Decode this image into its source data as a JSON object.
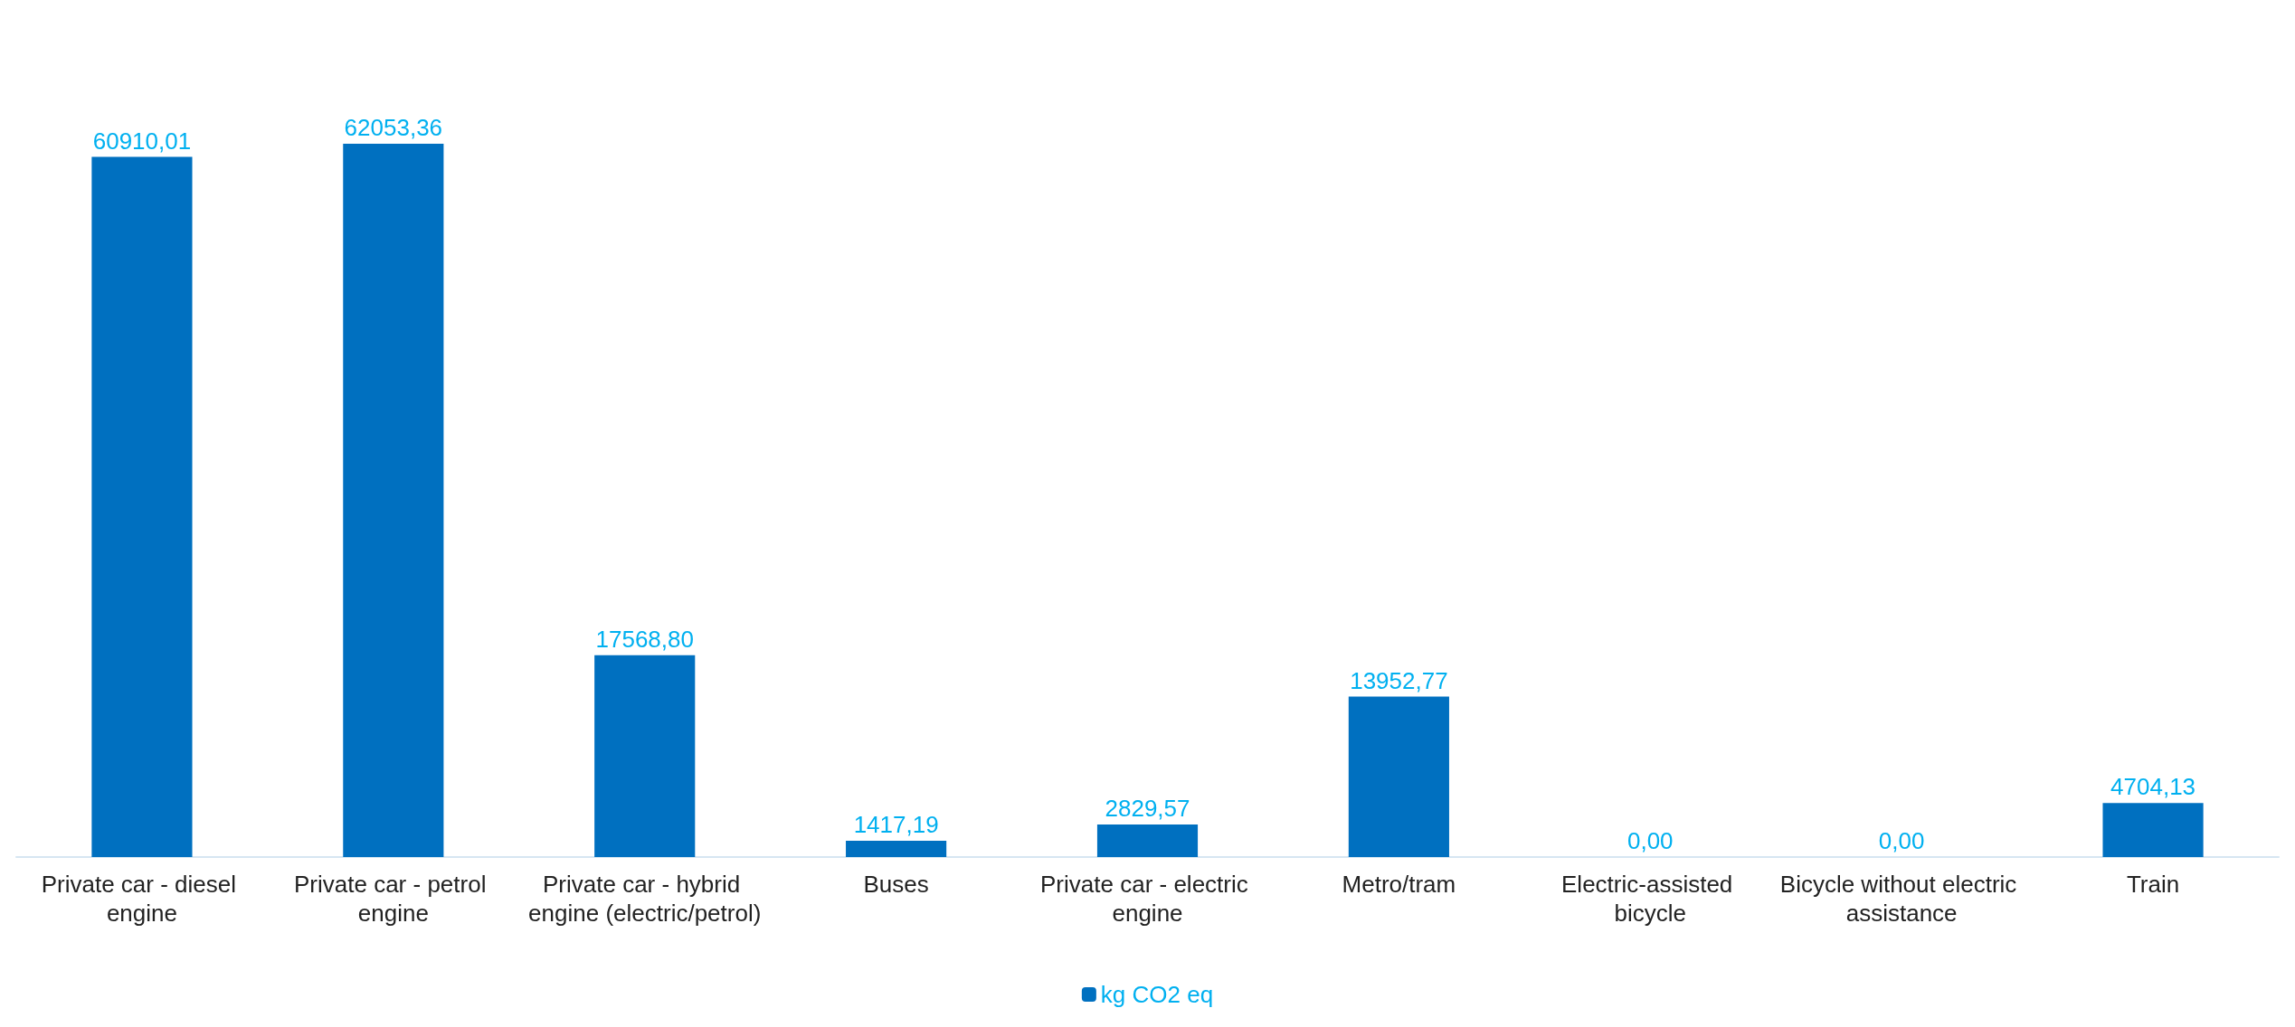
{
  "chart_data": {
    "type": "bar",
    "categories": [
      "Private car - diesel engine",
      "Private car - petrol engine",
      "Private car - hybrid engine (electric/petrol)",
      "Buses",
      "Private car - electric engine",
      "Metro/tram",
      "Electric-assisted bicycle",
      "Bicycle without electric assistance",
      "Train"
    ],
    "series": [
      {
        "name": "kg CO2 eq",
        "color": "#0070c0",
        "values": [
          60910.01,
          62053.36,
          17568.8,
          1417.19,
          2829.57,
          13952.77,
          0,
          0,
          4704.13
        ],
        "value_labels": [
          "60910,01",
          "62053,36",
          "17568,80",
          "1417,19",
          "2829,57",
          "13952,77",
          "0,00",
          "0,00",
          "4704,13"
        ]
      }
    ],
    "legend": "bottom",
    "grid": false
  }
}
